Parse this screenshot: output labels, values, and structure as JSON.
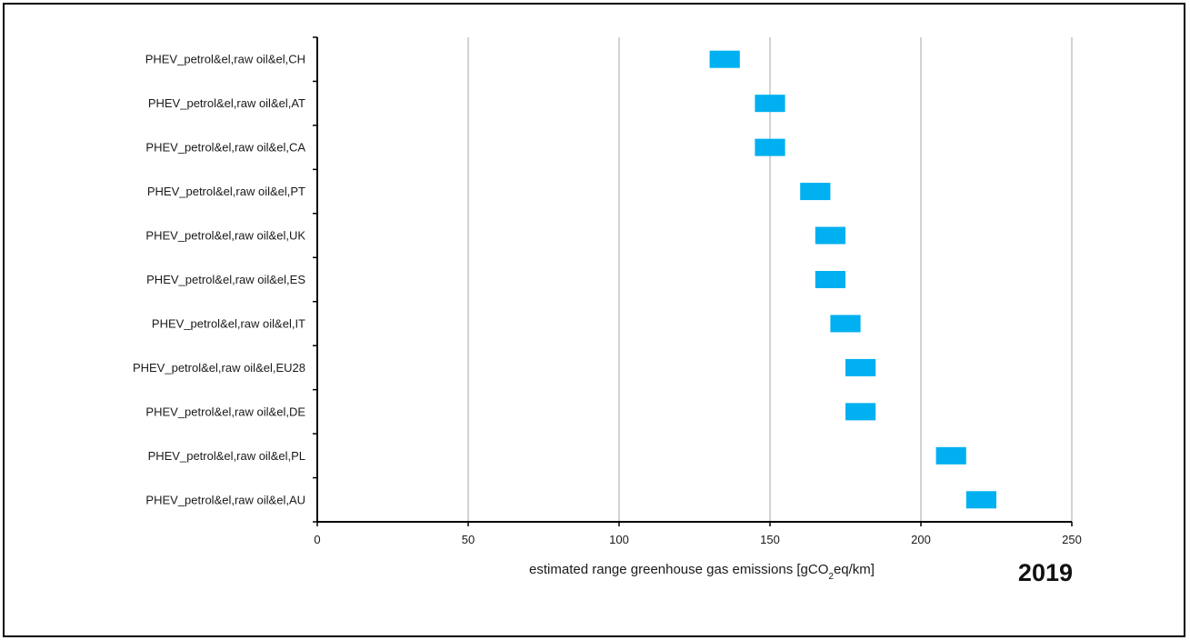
{
  "chart_data": {
    "type": "bar",
    "orientation": "horizontal",
    "subtype": "floating-range",
    "categories": [
      "PHEV_petrol&el,raw oil&el,CH",
      "PHEV_petrol&el,raw oil&el,AT",
      "PHEV_petrol&el,raw oil&el,CA",
      "PHEV_petrol&el,raw oil&el,PT",
      "PHEV_petrol&el,raw oil&el,UK",
      "PHEV_petrol&el,raw oil&el,ES",
      "PHEV_petrol&el,raw oil&el,IT",
      "PHEV_petrol&el,raw oil&el,EU28",
      "PHEV_petrol&el,raw oil&el,DE",
      "PHEV_petrol&el,raw oil&el,PL",
      "PHEV_petrol&el,raw oil&el,AU"
    ],
    "ranges": [
      [
        130,
        140
      ],
      [
        145,
        155
      ],
      [
        145,
        155
      ],
      [
        160,
        170
      ],
      [
        165,
        175
      ],
      [
        165,
        175
      ],
      [
        170,
        180
      ],
      [
        175,
        185
      ],
      [
        175,
        185
      ],
      [
        205,
        215
      ],
      [
        215,
        225
      ]
    ],
    "xlim": [
      0,
      250
    ],
    "xticks": [
      "0",
      "50",
      "100",
      "150",
      "200",
      "250"
    ],
    "xlabel_prefix": "estimated range greenhouse  gas emissions [gCO",
    "xlabel_subscript": "2",
    "xlabel_suffix": "eq/km]",
    "year_label": "2019",
    "grid": "vertical",
    "legend": "none",
    "colors": {
      "bar": "#00b0f0",
      "grid": "#a6a6a6",
      "axis": "#000000"
    }
  }
}
